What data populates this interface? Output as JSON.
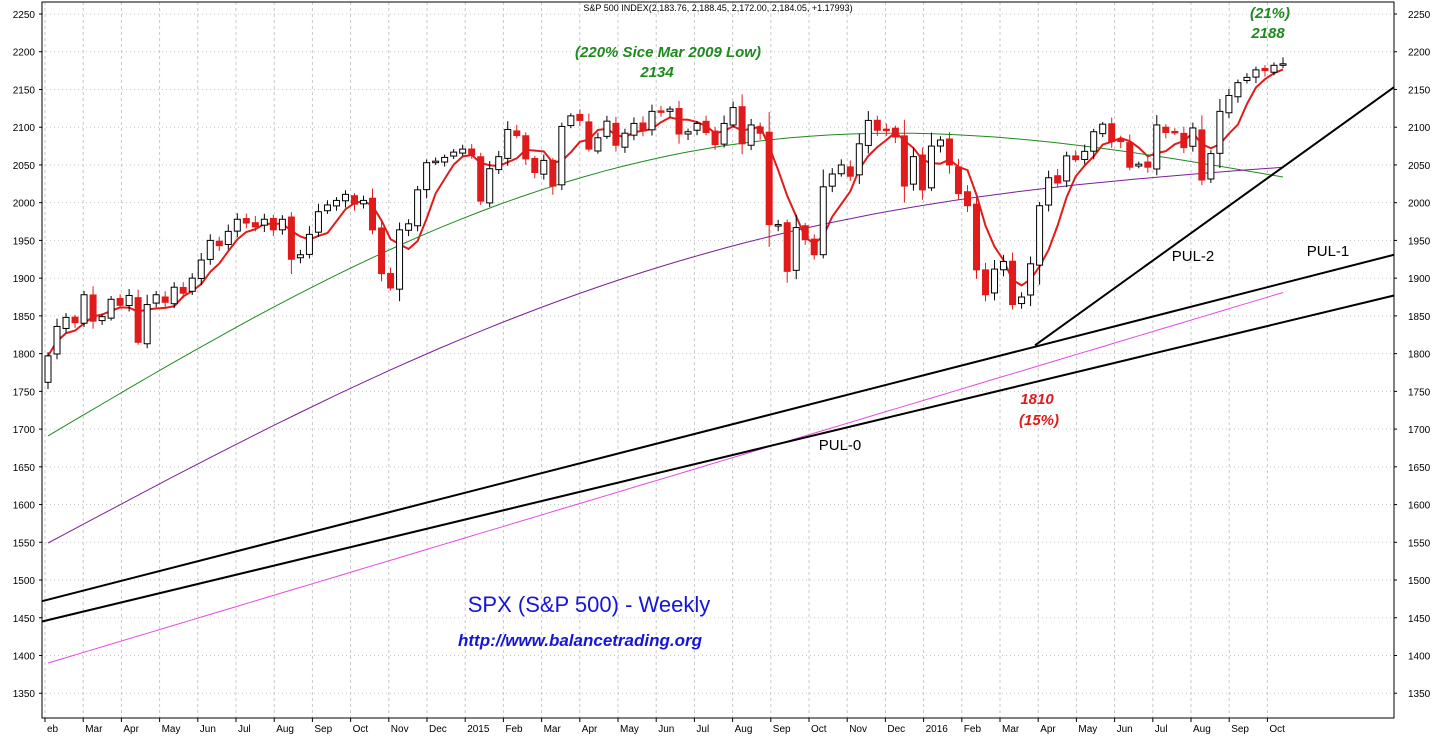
{
  "chart_data": {
    "type": "candlestick",
    "title": "S&P 500 INDEX(2,183.76, 2,188.45, 2,172.00, 2,184.05, +1.17993)",
    "ylim": [
      1310,
      2260
    ],
    "y_ticks": [
      1350,
      1400,
      1450,
      1500,
      1550,
      1600,
      1650,
      1700,
      1750,
      1800,
      1850,
      1900,
      1950,
      2000,
      2050,
      2100,
      2150,
      2200,
      2250
    ],
    "x_labels": [
      "eb",
      "Mar",
      "Apr",
      "May",
      "Jun",
      "Jul",
      "Aug",
      "Sep",
      "Oct",
      "Nov",
      "Dec",
      "2015",
      "Feb",
      "Mar",
      "Apr",
      "May",
      "Jun",
      "Jul",
      "Aug",
      "Sep",
      "Oct",
      "Nov",
      "Dec",
      "2016",
      "Feb",
      "Mar",
      "Apr",
      "May",
      "Jun",
      "Jul",
      "Aug",
      "Sep",
      "Oct"
    ],
    "grid": true,
    "weekly_close": [
      1797,
      1836,
      1848,
      1841,
      1878,
      1843,
      1849,
      1872,
      1864,
      1877,
      1815,
      1865,
      1878,
      1868,
      1888,
      1880,
      1900,
      1924,
      1950,
      1943,
      1962,
      1978,
      1973,
      1968,
      1978,
      1964,
      1978,
      1925,
      1931,
      1958,
      1988,
      1997,
      2003,
      2011,
      1998,
      2003,
      1964,
      1906,
      1887,
      1964,
      1972,
      2017,
      2053,
      2055,
      2060,
      2067,
      2071,
      2063,
      2002,
      2045,
      2061,
      2097,
      2089,
      2058,
      2040,
      2056,
      2022,
      2101,
      2115,
      2109,
      2071,
      2086,
      2108,
      2076,
      2092,
      2105,
      2095,
      2121,
      2120,
      2124,
      2091,
      2094,
      2105,
      2093,
      2077,
      2105,
      2126,
      2078,
      2103,
      2092,
      1971,
      1971,
      1909,
      1967,
      1951,
      1931,
      2021,
      2038,
      2050,
      2035,
      2078,
      2109,
      2096,
      2097,
      2087,
      2022,
      2061,
      2017,
      2075,
      2083,
      2050,
      2012,
      1996,
      1911,
      1878,
      1912,
      1922,
      1865,
      1875,
      1919,
      1996,
      2033,
      2026,
      2062,
      2057,
      2068,
      2094,
      2104,
      2081,
      2081,
      2047,
      2051,
      2047,
      2103,
      2093,
      2093,
      2073,
      2099,
      2030,
      2065,
      2121,
      2142,
      2159,
      2166,
      2176,
      2175,
      2182,
      2184
    ],
    "annotations": {
      "peak_note": "(220% Sice Mar 2009 Low)",
      "peak_value": "2134",
      "high_pct": "(21%)",
      "high_value": "2188",
      "low_value": "1810",
      "low_pct": "(15%)"
    },
    "trendlines": [
      {
        "name": "PUL-0",
        "from": 1445,
        "to": 1877
      },
      {
        "name": "PUL-1",
        "from": 1472,
        "to": 1931
      },
      {
        "name": "PUL-2",
        "from": 1811,
        "to": 2153
      }
    ],
    "moving_averages": [
      {
        "color": "#e01b1b",
        "from": 1797,
        "to": 2130
      },
      {
        "color": "#1e8a1e",
        "from": 1691,
        "to": 2034
      },
      {
        "color": "#7a1f9a",
        "from": 1549,
        "to": 2047
      },
      {
        "color": "#e24be2",
        "from": 1390,
        "to": 1881
      }
    ]
  },
  "texts": {
    "title_line": "S&P 500 INDEX(2,183.76, 2,188.45, 2,172.00, 2,184.05, +1.17993)",
    "peak_note": "(220% Sice Mar 2009 Low)",
    "peak_value": "2134",
    "high_pct": "(21%)",
    "high_value": "2188",
    "low_value": "1810",
    "low_pct": "(15%)",
    "pul0": "PUL-0",
    "pul1": "PUL-1",
    "pul2": "PUL-2",
    "chart_name": "SPX (S&P 500)  - Weekly",
    "url": "http://www.balancetrading.org"
  },
  "colors": {
    "up_fill": "#ffffff",
    "down_fill": "#e01b1b",
    "annotation_green": "#1e8a1e",
    "annotation_red": "#e01b1b",
    "label_blue": "#1515d8"
  }
}
